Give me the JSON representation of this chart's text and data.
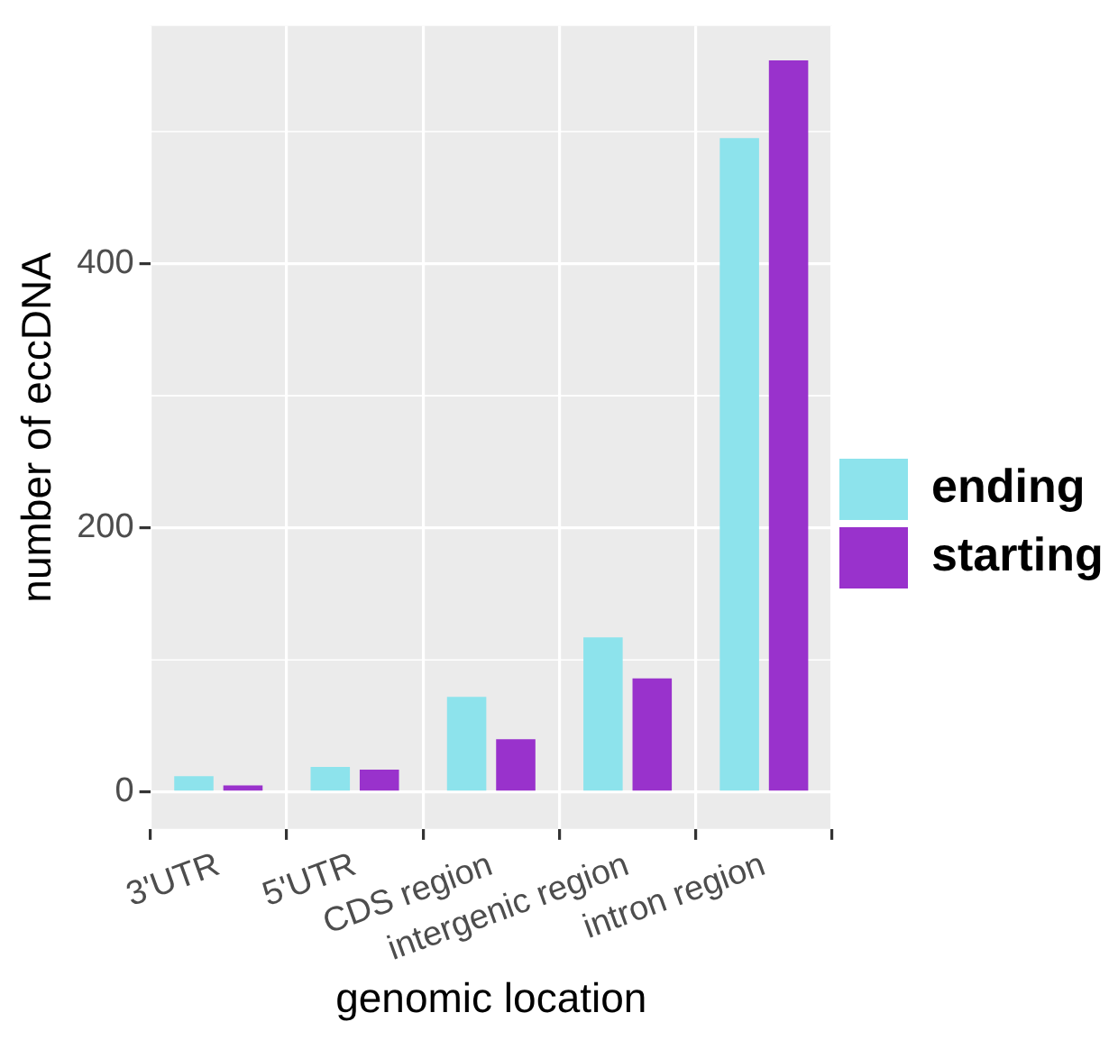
{
  "chart_data": {
    "type": "bar",
    "xlabel": "genomic location",
    "ylabel": "number of eccDNA",
    "categories": [
      "3'UTR",
      "5'UTR",
      "CDS region",
      "intergenic region",
      "intron region"
    ],
    "series": [
      {
        "name": "ending",
        "color": "#8de3ec",
        "values": [
          12,
          19,
          72,
          117,
          495
        ]
      },
      {
        "name": "starting",
        "color": "#9932cc",
        "values": [
          5,
          17,
          40,
          86,
          554
        ]
      }
    ],
    "ylim": [
      -28,
      580
    ],
    "yticks": [
      0,
      200,
      400
    ],
    "grid": true,
    "legend": "right"
  }
}
